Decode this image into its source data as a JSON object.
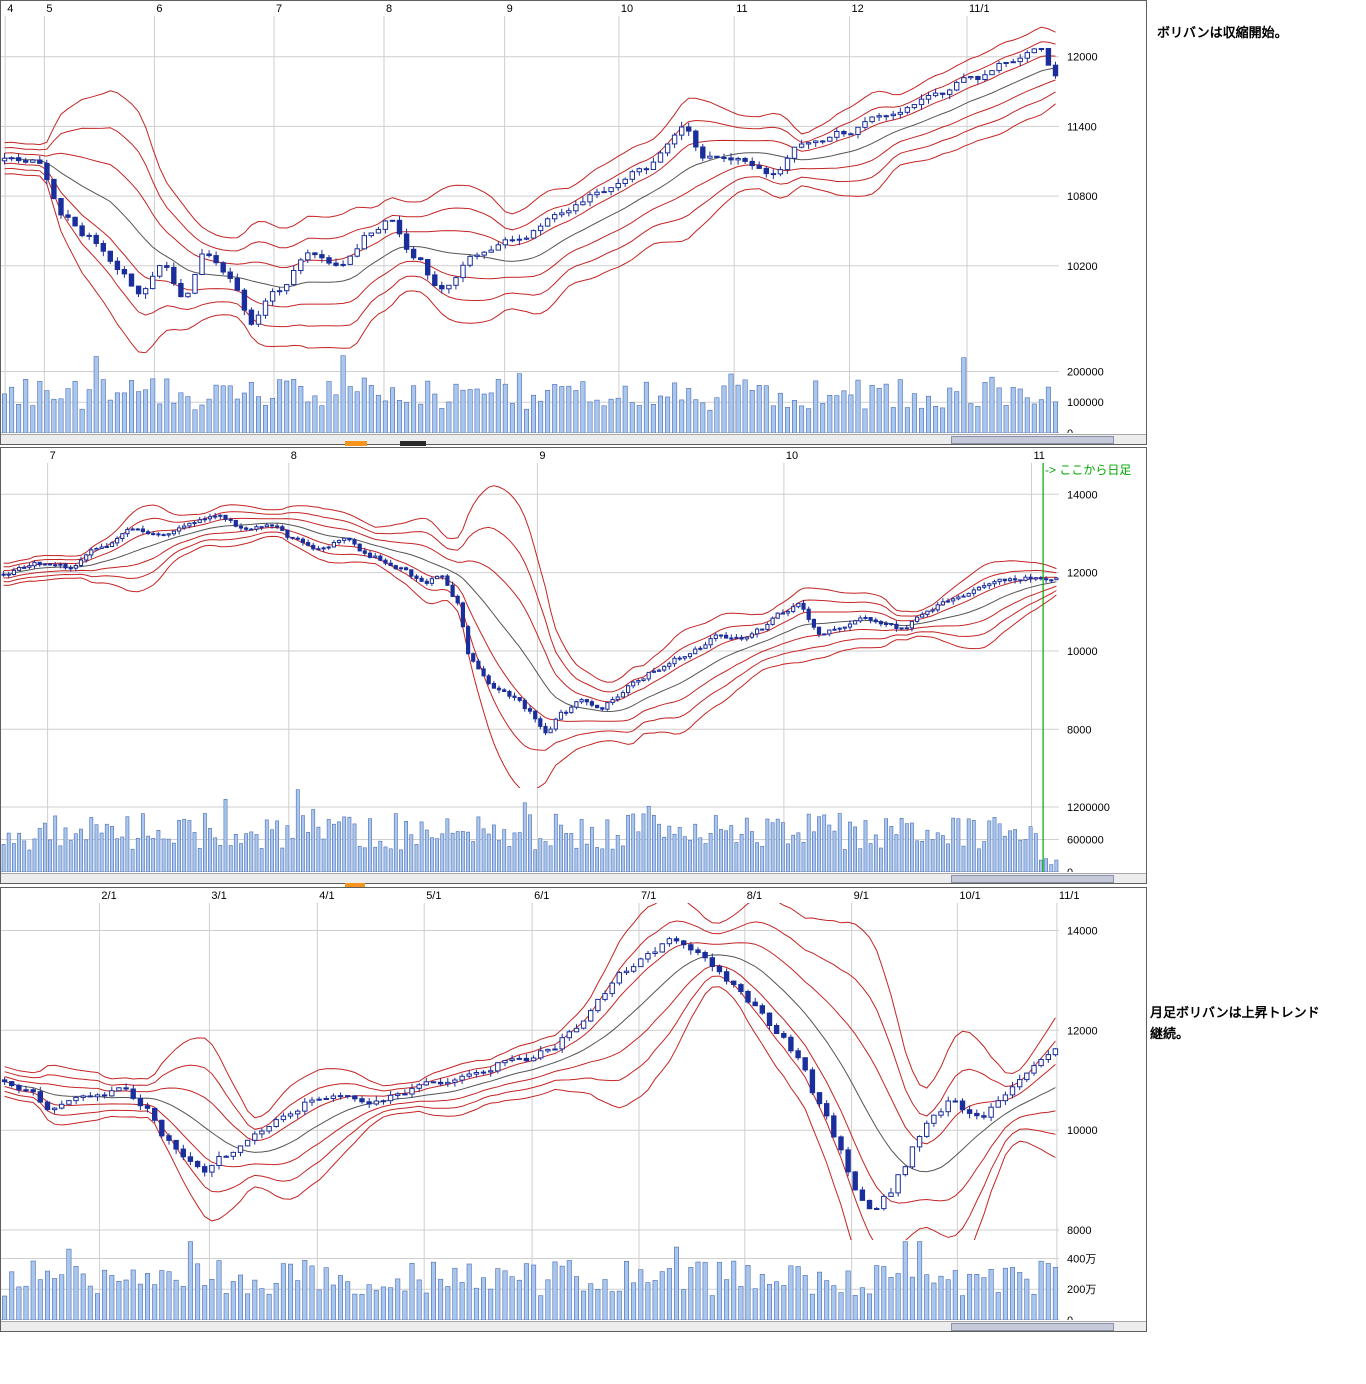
{
  "annotations": {
    "top_note": "ボリバンは収縮開始。",
    "bottom_note_line1": "月足ボリバンは上昇トレンド",
    "bottom_note_line2": "継続。",
    "daily_note": "-> ここから日足"
  },
  "colors": {
    "band": "#c42424",
    "center_line": "#555555",
    "candle": "#1b2f9c",
    "candle_up_fill": "#ffffff",
    "volume_fill": "#a9c6ec",
    "volume_stroke": "#4a6db8",
    "grid": "#cfcfcf",
    "green_line": "#00a800",
    "artifact_orange": "#f7941d",
    "artifact_dark": "#2a2a2a"
  },
  "chart_data": [
    {
      "id": "top",
      "type": "candlestick",
      "period_hint": "weekly",
      "candles": 150,
      "seed": 7,
      "noise": 50,
      "band_window": 16,
      "band_mults": [
        1,
        2,
        3
      ],
      "price_range": [
        9450,
        12350
      ],
      "price_ticks": [
        12000,
        11400,
        10800,
        10200
      ],
      "volume_max": 260000,
      "volume_ticks": [
        {
          "label": "200000",
          "value": 200000
        },
        {
          "label": "100000",
          "value": 100000
        },
        {
          "label": "0",
          "value": 0
        }
      ],
      "vol_base": 0.28,
      "vol_var": 0.4,
      "x_ticks": [
        {
          "label": "4",
          "pos": 0.004
        },
        {
          "label": "5",
          "pos": 0.041
        },
        {
          "label": "6",
          "pos": 0.145
        },
        {
          "label": "7",
          "pos": 0.258
        },
        {
          "label": "8",
          "pos": 0.362
        },
        {
          "label": "9",
          "pos": 0.476
        },
        {
          "label": "10",
          "pos": 0.584
        },
        {
          "label": "11",
          "pos": 0.693
        },
        {
          "label": "12",
          "pos": 0.802
        },
        {
          "label": "11/1",
          "pos": 0.913
        }
      ],
      "anchors": [
        [
          0,
          11150
        ],
        [
          0.03,
          11100
        ],
        [
          0.055,
          10650
        ],
        [
          0.08,
          10450
        ],
        [
          0.11,
          10150
        ],
        [
          0.13,
          9950
        ],
        [
          0.15,
          10200
        ],
        [
          0.17,
          9900
        ],
        [
          0.19,
          10300
        ],
        [
          0.215,
          10100
        ],
        [
          0.235,
          9700
        ],
        [
          0.26,
          10000
        ],
        [
          0.29,
          10300
        ],
        [
          0.32,
          10200
        ],
        [
          0.35,
          10500
        ],
        [
          0.365,
          10600
        ],
        [
          0.39,
          10300
        ],
        [
          0.415,
          10000
        ],
        [
          0.45,
          10300
        ],
        [
          0.49,
          10450
        ],
        [
          0.53,
          10650
        ],
        [
          0.57,
          10850
        ],
        [
          0.61,
          11050
        ],
        [
          0.645,
          11400
        ],
        [
          0.665,
          11150
        ],
        [
          0.7,
          11100
        ],
        [
          0.73,
          11000
        ],
        [
          0.76,
          11250
        ],
        [
          0.8,
          11350
        ],
        [
          0.84,
          11500
        ],
        [
          0.88,
          11650
        ],
        [
          0.92,
          11800
        ],
        [
          0.955,
          11950
        ],
        [
          0.985,
          12050
        ],
        [
          1,
          11850
        ]
      ]
    },
    {
      "id": "middle",
      "type": "candlestick",
      "period_hint": "daily",
      "candles": 205,
      "seed": 42,
      "noise": 105,
      "band_window": 18,
      "band_mults": [
        1,
        2,
        3
      ],
      "price_range": [
        6500,
        14800
      ],
      "price_ticks": [
        14000,
        12000,
        10000,
        8000
      ],
      "volume_max": 1550000,
      "volume_ticks": [
        {
          "label": "1200000",
          "value": 1200000
        },
        {
          "label": "600000",
          "value": 600000
        },
        {
          "label": "0",
          "value": 0
        }
      ],
      "vol_base": 0.25,
      "vol_var": 0.45,
      "green_line_pos": 0.985,
      "x_ticks": [
        {
          "label": "7",
          "pos": 0.044
        },
        {
          "label": "8",
          "pos": 0.272
        },
        {
          "label": "9",
          "pos": 0.507
        },
        {
          "label": "10",
          "pos": 0.74
        },
        {
          "label": "11",
          "pos": 0.974
        }
      ],
      "anchors": [
        [
          0,
          11950
        ],
        [
          0.03,
          12250
        ],
        [
          0.06,
          12150
        ],
        [
          0.09,
          12600
        ],
        [
          0.12,
          13100
        ],
        [
          0.15,
          13000
        ],
        [
          0.18,
          13300
        ],
        [
          0.205,
          13450
        ],
        [
          0.23,
          13100
        ],
        [
          0.25,
          13250
        ],
        [
          0.28,
          12800
        ],
        [
          0.3,
          12550
        ],
        [
          0.325,
          12850
        ],
        [
          0.35,
          12400
        ],
        [
          0.375,
          12100
        ],
        [
          0.4,
          11750
        ],
        [
          0.415,
          11900
        ],
        [
          0.428,
          11400
        ],
        [
          0.445,
          9700
        ],
        [
          0.465,
          9100
        ],
        [
          0.485,
          8800
        ],
        [
          0.5,
          8400
        ],
        [
          0.515,
          7900
        ],
        [
          0.53,
          8400
        ],
        [
          0.55,
          8700
        ],
        [
          0.565,
          8500
        ],
        [
          0.58,
          8800
        ],
        [
          0.6,
          9200
        ],
        [
          0.62,
          9500
        ],
        [
          0.64,
          9800
        ],
        [
          0.66,
          10100
        ],
        [
          0.68,
          10400
        ],
        [
          0.7,
          10300
        ],
        [
          0.72,
          10600
        ],
        [
          0.74,
          11000
        ],
        [
          0.755,
          11250
        ],
        [
          0.775,
          10450
        ],
        [
          0.795,
          10650
        ],
        [
          0.815,
          10850
        ],
        [
          0.835,
          10700
        ],
        [
          0.855,
          10550
        ],
        [
          0.875,
          11000
        ],
        [
          0.9,
          11300
        ],
        [
          0.925,
          11600
        ],
        [
          0.95,
          11800
        ],
        [
          0.975,
          11850
        ],
        [
          1,
          11850
        ]
      ]
    },
    {
      "id": "bottom",
      "type": "candlestick",
      "period_hint": "monthly",
      "candles": 148,
      "seed": 99,
      "noise": 110,
      "band_window": 14,
      "band_mults": [
        1,
        2,
        3
      ],
      "price_range": [
        7800,
        14550
      ],
      "price_ticks": [
        14000,
        12000,
        10000,
        8000
      ],
      "volume_max": 5200000,
      "volume_ticks": [
        {
          "label": "400万",
          "value": 4000000
        },
        {
          "label": "200万",
          "value": 2000000
        },
        {
          "label": "0",
          "value": 0
        }
      ],
      "vol_base": 0.3,
      "vol_var": 0.45,
      "x_ticks": [
        {
          "label": "2/1",
          "pos": 0.093
        },
        {
          "label": "3/1",
          "pos": 0.197
        },
        {
          "label": "4/1",
          "pos": 0.299
        },
        {
          "label": "5/1",
          "pos": 0.4
        },
        {
          "label": "6/1",
          "pos": 0.502
        },
        {
          "label": "7/1",
          "pos": 0.603
        },
        {
          "label": "8/1",
          "pos": 0.703
        },
        {
          "label": "9/1",
          "pos": 0.804
        },
        {
          "label": "10/1",
          "pos": 0.904
        },
        {
          "label": "11/1",
          "pos": 0.998
        }
      ],
      "anchors": [
        [
          0,
          11000
        ],
        [
          0.02,
          10850
        ],
        [
          0.045,
          10400
        ],
        [
          0.07,
          10650
        ],
        [
          0.095,
          10750
        ],
        [
          0.115,
          10800
        ],
        [
          0.135,
          10400
        ],
        [
          0.155,
          9800
        ],
        [
          0.175,
          9400
        ],
        [
          0.19,
          9200
        ],
        [
          0.21,
          9500
        ],
        [
          0.24,
          9900
        ],
        [
          0.27,
          10300
        ],
        [
          0.295,
          10650
        ],
        [
          0.32,
          10700
        ],
        [
          0.35,
          10600
        ],
        [
          0.375,
          10700
        ],
        [
          0.4,
          10950
        ],
        [
          0.43,
          11000
        ],
        [
          0.455,
          11200
        ],
        [
          0.48,
          11450
        ],
        [
          0.5,
          11400
        ],
        [
          0.52,
          11650
        ],
        [
          0.545,
          12100
        ],
        [
          0.57,
          12700
        ],
        [
          0.59,
          13200
        ],
        [
          0.615,
          13600
        ],
        [
          0.635,
          13850
        ],
        [
          0.655,
          13600
        ],
        [
          0.675,
          13300
        ],
        [
          0.695,
          12900
        ],
        [
          0.715,
          12500
        ],
        [
          0.735,
          12000
        ],
        [
          0.755,
          11400
        ],
        [
          0.775,
          10500
        ],
        [
          0.795,
          9600
        ],
        [
          0.81,
          8800
        ],
        [
          0.825,
          8400
        ],
        [
          0.84,
          8700
        ],
        [
          0.855,
          9300
        ],
        [
          0.87,
          9900
        ],
        [
          0.885,
          10300
        ],
        [
          0.9,
          10600
        ],
        [
          0.915,
          10400
        ],
        [
          0.93,
          10300
        ],
        [
          0.945,
          10600
        ],
        [
          0.96,
          10900
        ],
        [
          0.975,
          11200
        ],
        [
          0.99,
          11500
        ],
        [
          1,
          11700
        ]
      ]
    }
  ]
}
